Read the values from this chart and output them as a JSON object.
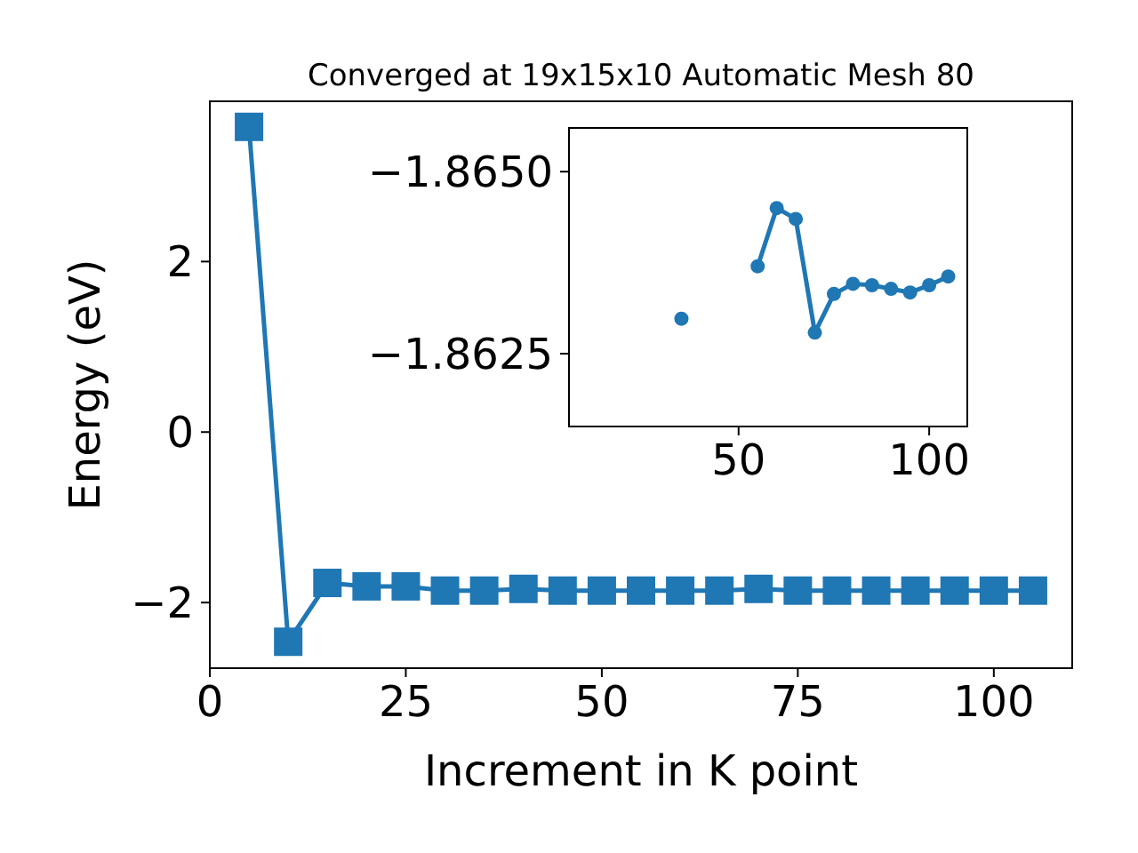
{
  "chart_data": [
    {
      "type": "line",
      "title": "Converged at 19x15x10 Automatic Mesh 80",
      "xlabel": "Increment in K point",
      "ylabel": "Energy (eV)",
      "marker": "square",
      "grid": false,
      "x": [
        5,
        10,
        15,
        20,
        25,
        30,
        35,
        40,
        45,
        50,
        55,
        60,
        65,
        70,
        75,
        80,
        85,
        90,
        95,
        100,
        105
      ],
      "series": [
        {
          "color": "#1f77b4",
          "values": [
            3.58,
            -2.46,
            -1.77,
            -1.81,
            -1.81,
            -1.86,
            -1.86,
            -1.84,
            -1.86,
            -1.86,
            -1.86,
            -1.86,
            -1.86,
            -1.84,
            -1.86,
            -1.86,
            -1.86,
            -1.86,
            -1.86,
            -1.86,
            -1.86
          ]
        }
      ],
      "xlim": [
        0,
        110
      ],
      "ylim": [
        -2.77,
        3.88
      ],
      "xticks": [
        0,
        25,
        50,
        75,
        100
      ],
      "yticks": [
        {
          "value": -2,
          "label": "−2"
        },
        0,
        2
      ]
    },
    {
      "type": "line",
      "marker": "circle",
      "grid": false,
      "x": [
        35,
        40,
        45,
        50,
        55,
        60,
        65,
        70,
        75,
        80,
        85,
        90,
        95,
        100,
        105
      ],
      "series": [
        {
          "color": "#1f77b4",
          "values": [
            -1.86298,
            null,
            null,
            null,
            -1.8637,
            -1.8645,
            -1.86435,
            -1.86279,
            -1.86332,
            -1.86346,
            -1.86344,
            -1.86339,
            -1.86334,
            -1.86344,
            -1.86356
          ]
        }
      ],
      "xlim": [
        5.5,
        110
      ],
      "ylim": [
        -1.8615,
        -1.8656
      ],
      "xticks": [
        50,
        100
      ],
      "yticks": [
        {
          "value": -1.865,
          "label": "−1.8650"
        },
        {
          "value": -1.8625,
          "label": "−1.8625"
        }
      ]
    }
  ]
}
